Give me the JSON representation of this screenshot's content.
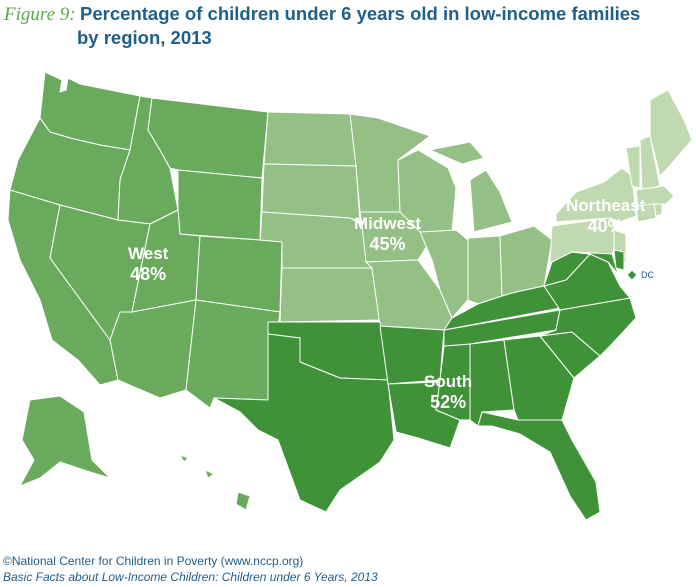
{
  "figure_label": "Figure 9:",
  "title_line1": "Percentage of children under 6 years old in low-income families",
  "title_line2": "by region, 2013",
  "regions": {
    "west": {
      "name": "West",
      "value": "48%",
      "color": "#6aaa5c"
    },
    "midwest": {
      "name": "Midwest",
      "value": "45%",
      "color": "#94bf85"
    },
    "northeast": {
      "name": "Northeast",
      "value": "40%",
      "color": "#bfd9b1"
    },
    "south": {
      "name": "South",
      "value": "52%",
      "color": "#3f9238"
    }
  },
  "dc_label": "DC",
  "source": "©National Center for Children in Poverty (www.nccp.org)",
  "subtitle": "Basic Facts about Low-Income Children: Children under 6 Years, 2013"
}
